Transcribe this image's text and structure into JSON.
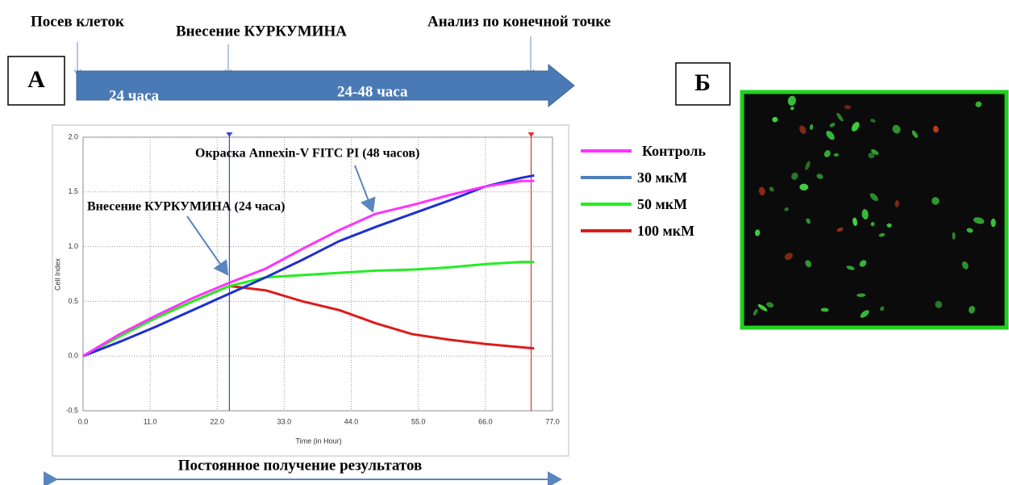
{
  "figure": {
    "step_seeding": "Посев клеток",
    "step_curcumin": "Внесение КУРКУМИНА",
    "step_endpoint": "Анализ по конечной точке",
    "panel_a": "А",
    "panel_b": "Б",
    "period_1": "24 часа",
    "period_2": "24-48 часа",
    "continuous": "Постоянное получение результатов"
  },
  "chart_data": {
    "type": "line",
    "xlabel": "Time (in Hour)",
    "ylabel": "Cell Index",
    "annotations": [
      "Окраска Annexin-V FITC PI (48 часов)",
      "Внесение КУРКУМИНА (24 часа)"
    ],
    "xlim": [
      0,
      77
    ],
    "ylim": [
      -0.5,
      2.0
    ],
    "xticks": [
      {
        "value": 0,
        "label": "0.0"
      },
      {
        "value": 11,
        "label": "11.0"
      },
      {
        "value": 22,
        "label": "22.0"
      },
      {
        "value": 33,
        "label": "33.0"
      },
      {
        "value": 44,
        "label": "44.0"
      },
      {
        "value": 55,
        "label": "55.0"
      },
      {
        "value": 66,
        "label": "66.0"
      },
      {
        "value": 77,
        "label": "77.0"
      }
    ],
    "yticks": [
      -0.5,
      {
        "value": 0,
        "label": "0.0"
      },
      0.5,
      {
        "value": 1,
        "label": "1.0"
      },
      1.5,
      {
        "value": 2,
        "label": "2.0"
      }
    ],
    "grid": true,
    "vlines": [
      {
        "x": 24,
        "color": "#3a49c9"
      },
      {
        "x": 73.5,
        "color": "#e53030"
      }
    ],
    "x": [
      0,
      6,
      12,
      18,
      24,
      30,
      36,
      42,
      48,
      54,
      60,
      66,
      72,
      74
    ],
    "series": [
      {
        "name": "Контроль",
        "color": "#ff33ff",
        "values": [
          0,
          0.2,
          0.37,
          0.53,
          0.67,
          0.8,
          0.98,
          1.15,
          1.3,
          1.38,
          1.47,
          1.55,
          1.6,
          1.6
        ]
      },
      {
        "name": "30 мкМ",
        "color": "#1e2fd0",
        "legend_color": "#4f81bd",
        "values": [
          0,
          0.13,
          0.27,
          0.42,
          0.57,
          0.72,
          0.88,
          1.05,
          1.18,
          1.3,
          1.42,
          1.55,
          1.63,
          1.65
        ]
      },
      {
        "name": "50 мкМ",
        "color": "#22ee22",
        "values": [
          0,
          0.18,
          0.35,
          0.5,
          0.64,
          0.72,
          0.74,
          0.76,
          0.78,
          0.79,
          0.81,
          0.84,
          0.86,
          0.86
        ]
      },
      {
        "name": "100 мкМ",
        "color": "#dd1c1c",
        "values": [
          0,
          0.18,
          0.35,
          0.5,
          0.64,
          0.6,
          0.5,
          0.42,
          0.3,
          0.2,
          0.15,
          0.11,
          0.08,
          0.07
        ]
      }
    ]
  }
}
